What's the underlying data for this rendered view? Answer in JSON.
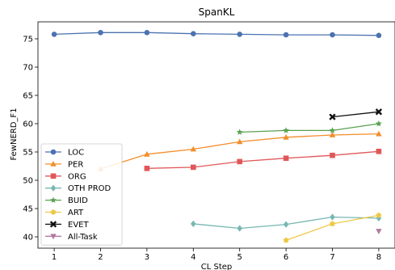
{
  "chart_data": {
    "type": "line",
    "title": "SpanKL",
    "xlabel": "CL Step",
    "ylabel": "FewNERD_F1",
    "xlim": [
      0.65,
      8.35
    ],
    "ylim": [
      38,
      78
    ],
    "x_ticks": [
      1,
      2,
      3,
      4,
      5,
      6,
      7,
      8
    ],
    "y_ticks": [
      40,
      45,
      50,
      55,
      60,
      65,
      70,
      75
    ],
    "grid": false,
    "legend_position": "lower-left",
    "series": [
      {
        "name": "LOC",
        "color": "#4c72b0",
        "marker": "circle",
        "x": [
          1,
          2,
          3,
          4,
          5,
          6,
          7,
          8
        ],
        "values": [
          75.8,
          76.1,
          76.1,
          75.9,
          75.8,
          75.7,
          75.7,
          75.6
        ]
      },
      {
        "name": "PER",
        "color": "#f28e2b",
        "marker": "triangle",
        "x": [
          2,
          3,
          4,
          5,
          6,
          7,
          8
        ],
        "values": [
          52.0,
          54.6,
          55.5,
          56.8,
          57.6,
          58.0,
          58.2
        ]
      },
      {
        "name": "ORG",
        "color": "#e15759",
        "marker": "square",
        "x": [
          3,
          4,
          5,
          6,
          7,
          8
        ],
        "values": [
          52.1,
          52.3,
          53.3,
          53.9,
          54.4,
          55.1
        ]
      },
      {
        "name": "OTH PROD",
        "color": "#76b7b2",
        "marker": "diamond",
        "x": [
          4,
          5,
          6,
          7,
          8
        ],
        "values": [
          42.3,
          41.5,
          42.2,
          43.5,
          43.3
        ]
      },
      {
        "name": "BUID",
        "color": "#59a14f",
        "marker": "star",
        "x": [
          5,
          6,
          7,
          8
        ],
        "values": [
          58.5,
          58.8,
          58.8,
          60.0
        ]
      },
      {
        "name": "ART",
        "color": "#edc948",
        "marker": "pentagon",
        "x": [
          6,
          7,
          8
        ],
        "values": [
          39.4,
          42.3,
          43.8
        ]
      },
      {
        "name": "EVET",
        "color": "#111111",
        "marker": "x",
        "x": [
          7,
          8
        ],
        "values": [
          61.2,
          62.1
        ]
      },
      {
        "name": "All-Task",
        "color": "#b07aa1",
        "marker": "triangle-down",
        "x": [
          8
        ],
        "values": [
          41.0
        ]
      }
    ]
  }
}
